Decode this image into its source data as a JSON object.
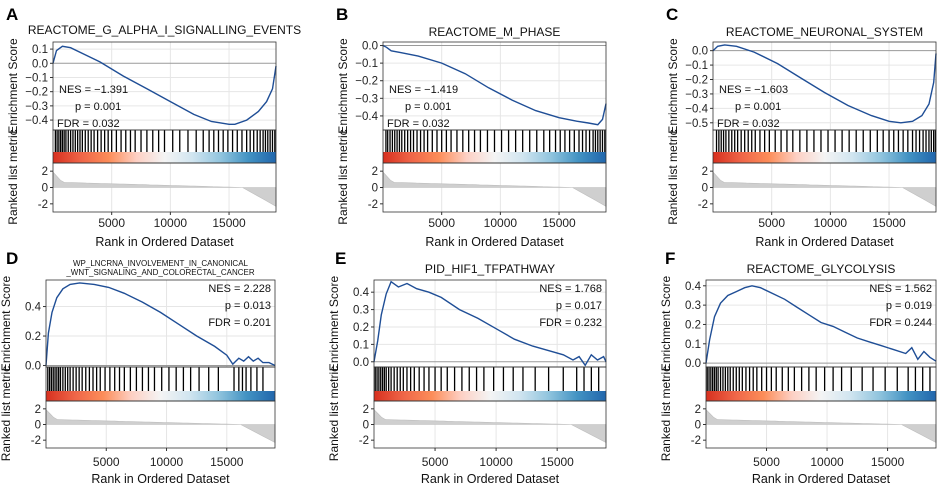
{
  "colors": {
    "curve": "#1f4e96",
    "grid": "#e6e6e6",
    "zero": "#9a9a9a",
    "axis": "#333333",
    "metric": "#cfcfcf",
    "bar_gradient": [
      "#d7301f",
      "#ef6548",
      "#fc8d59",
      "#fdd0c4",
      "#f4f4f4",
      "#d1e5f0",
      "#92c5de",
      "#4393c3",
      "#2166ac"
    ]
  },
  "common": {
    "es_ylabel": "Enrichment Score",
    "rm_ylabel": "Ranked list metric",
    "xlabel": "Rank in Ordered Dataset",
    "xticks": [
      5000,
      10000,
      15000
    ],
    "xticklabels": [
      "5000",
      "10000",
      "15000"
    ],
    "xlim": [
      0,
      19000
    ],
    "rm_ticks": [
      2,
      0,
      -2
    ],
    "rm_ticklabels": [
      "2",
      "0",
      "-2"
    ]
  },
  "chart_data": [
    {
      "type": "line",
      "letter": "A",
      "title": "REACTOME_G_ALPHA_I_SIGNALLING_EVENTS",
      "title_lines": [
        "REACTOME_G_ALPHA_I_SIGNALLING_EVENTS"
      ],
      "stats": [
        "NES = −1.391",
        "p = 0.001",
        "FDR = 0.032"
      ],
      "stats_pos": "left",
      "ylim": [
        -0.47,
        0.15
      ],
      "yticks": [
        0.1,
        0.0,
        -0.1,
        -0.2,
        -0.3,
        -0.4
      ],
      "yticklabels": [
        "0.1",
        "0.0",
        "−0.1",
        "−0.2",
        "−0.3",
        "−0.4"
      ],
      "x": [
        0,
        300,
        800,
        1500,
        2500,
        4000,
        6000,
        8000,
        10000,
        12000,
        13500,
        15000,
        15500,
        16500,
        17500,
        18200,
        18700,
        19000
      ],
      "y": [
        0.0,
        0.09,
        0.12,
        0.11,
        0.07,
        0.01,
        -0.09,
        -0.18,
        -0.27,
        -0.36,
        -0.41,
        -0.43,
        -0.43,
        -0.4,
        -0.34,
        -0.27,
        -0.18,
        -0.02
      ],
      "hits_rank": [
        200,
        350,
        500,
        650,
        800,
        950,
        1100,
        1300,
        1500,
        1700,
        1900,
        2100,
        2300,
        2500,
        2750,
        3000,
        3250,
        3500,
        3800,
        4100,
        4400,
        4700,
        5000,
        5400,
        5800,
        6200,
        6600,
        7000,
        7500,
        8000,
        8500,
        9000,
        9500,
        10200,
        10800,
        11500,
        12200,
        12800,
        13300,
        13700,
        14100,
        14500,
        14900,
        15300,
        15700,
        16100,
        16500,
        16800,
        17100,
        17400,
        17650,
        17900,
        18100,
        18300,
        18500,
        18700,
        18900
      ]
    },
    {
      "type": "line",
      "letter": "B",
      "title": "REACTOME_M_PHASE",
      "title_lines": [
        "REACTOME_M_PHASE"
      ],
      "stats": [
        "NES = −1.419",
        "p = 0.001",
        "FDR = 0.032"
      ],
      "stats_pos": "left",
      "ylim": [
        -0.48,
        0.02
      ],
      "yticks": [
        0.0,
        -0.1,
        -0.2,
        -0.3,
        -0.4
      ],
      "yticklabels": [
        "0.0",
        "−0.1",
        "−0.2",
        "−0.3",
        "−0.4"
      ],
      "x": [
        0,
        300,
        700,
        1500,
        3000,
        5000,
        7000,
        9000,
        11000,
        13000,
        15000,
        16500,
        17500,
        18300,
        18700,
        19000
      ],
      "y": [
        0.0,
        -0.01,
        -0.03,
        -0.04,
        -0.06,
        -0.1,
        -0.16,
        -0.24,
        -0.31,
        -0.37,
        -0.41,
        -0.43,
        -0.44,
        -0.45,
        -0.42,
        -0.33
      ],
      "hits_rank": [
        250,
        400,
        600,
        800,
        1000,
        1200,
        1400,
        1600,
        1850,
        2100,
        2350,
        2600,
        2900,
        3200,
        3500,
        3800,
        4200,
        4600,
        5000,
        5400,
        5800,
        6300,
        6800,
        7300,
        7800,
        8300,
        8900,
        9500,
        10100,
        10700,
        11300,
        11900,
        12500,
        13100,
        13700,
        14200,
        14700,
        15100,
        15500,
        15900,
        16300,
        16700,
        17000,
        17300,
        17600,
        17900,
        18100,
        18300,
        18500,
        18700,
        18900
      ]
    },
    {
      "type": "line",
      "letter": "C",
      "title": "REACTOME_NEURONAL_SYSTEM",
      "title_lines": [
        "REACTOME_NEURONAL_SYSTEM"
      ],
      "stats": [
        "NES = −1.603",
        "p = 0.001",
        "FDR = 0.032"
      ],
      "stats_pos": "left",
      "ylim": [
        -0.55,
        0.06
      ],
      "yticks": [
        0.0,
        -0.1,
        -0.2,
        -0.3,
        -0.4,
        -0.5
      ],
      "yticklabels": [
        "0.0",
        "−0.1",
        "−0.2",
        "−0.3",
        "−0.4",
        "−0.5"
      ],
      "x": [
        0,
        400,
        1000,
        2000,
        3500,
        5500,
        7500,
        9500,
        11500,
        13500,
        15000,
        16000,
        17000,
        17800,
        18400,
        18800,
        19000
      ],
      "y": [
        0.0,
        0.03,
        0.04,
        0.03,
        -0.01,
        -0.09,
        -0.19,
        -0.29,
        -0.38,
        -0.45,
        -0.49,
        -0.5,
        -0.49,
        -0.45,
        -0.37,
        -0.22,
        -0.02
      ],
      "hits_rank": [
        300,
        500,
        700,
        900,
        1100,
        1350,
        1600,
        1850,
        2100,
        2400,
        2700,
        3000,
        3300,
        3600,
        4000,
        4400,
        4800,
        5300,
        5800,
        6300,
        6800,
        7400,
        8000,
        8600,
        9200,
        9800,
        10400,
        11000,
        11600,
        12200,
        12800,
        13400,
        14000,
        14500,
        15000,
        15400,
        15800,
        16200,
        16600,
        17000,
        17300,
        17600,
        17900,
        18150,
        18400,
        18600,
        18800,
        18950
      ]
    },
    {
      "type": "line",
      "letter": "D",
      "title": "WP_LNCRNA_INVOLVEMENT_IN_CANONICAL_WNT_SIGNALING_AND_COLORECTAL_CANCER",
      "title_lines": [
        "WP_LNCRNA_INVOLVEMENT_IN_CANONICAL",
        "_WNT_SIGNALING_AND_COLORECTAL_CANCER"
      ],
      "stats": [
        "NES = 2.228",
        "p = 0.013",
        "FDR = 0.201"
      ],
      "stats_pos": "right",
      "ylim": [
        -0.01,
        0.58
      ],
      "yticks": [
        0.4,
        0.2,
        0.0
      ],
      "yticklabels": [
        "0.4",
        "0.2",
        "0.0"
      ],
      "x": [
        0,
        200,
        500,
        900,
        1400,
        2000,
        2800,
        4000,
        5200,
        6500,
        8000,
        9500,
        11000,
        12500,
        14000,
        15000,
        15500,
        16000,
        16400,
        16800,
        17200,
        17600,
        18000,
        18500,
        19000
      ],
      "y": [
        0.0,
        0.22,
        0.36,
        0.46,
        0.52,
        0.55,
        0.56,
        0.55,
        0.53,
        0.49,
        0.43,
        0.36,
        0.28,
        0.2,
        0.13,
        0.07,
        0.01,
        0.05,
        0.03,
        0.06,
        0.03,
        0.05,
        0.02,
        0.02,
        0.0
      ],
      "hits_rank": [
        150,
        300,
        450,
        600,
        750,
        900,
        1050,
        1200,
        1400,
        1600,
        1800,
        2000,
        2250,
        2500,
        2750,
        3000,
        3300,
        3600,
        3900,
        4200,
        4500,
        4900,
        5300,
        5700,
        6100,
        6500,
        7000,
        7500,
        8000,
        8500,
        9000,
        9600,
        10200,
        10800,
        11400,
        12000,
        12700,
        13500,
        14300,
        15600,
        16000,
        16300,
        16600,
        17000,
        17500,
        18000
      ]
    },
    {
      "type": "line",
      "letter": "E",
      "title": "PID_HIF1_TFPATHWAY",
      "title_lines": [
        "PID_HIF1_TFPATHWAY"
      ],
      "stats": [
        "NES = 1.768",
        "p = 0.017",
        "FDR = 0.232"
      ],
      "stats_pos": "right",
      "ylim": [
        -0.03,
        0.47
      ],
      "yticks": [
        0.4,
        0.3,
        0.2,
        0.1,
        0.0
      ],
      "yticklabels": [
        "0.4",
        "0.3",
        "0.2",
        "0.1",
        "0.0"
      ],
      "x": [
        0,
        300,
        600,
        1000,
        1400,
        2000,
        2700,
        3500,
        4500,
        5500,
        7000,
        8500,
        10000,
        11500,
        13000,
        14500,
        15500,
        16300,
        16800,
        17300,
        17800,
        18300,
        18800,
        19000
      ],
      "y": [
        0.0,
        0.12,
        0.27,
        0.39,
        0.46,
        0.43,
        0.45,
        0.42,
        0.4,
        0.37,
        0.3,
        0.25,
        0.19,
        0.13,
        0.09,
        0.06,
        0.04,
        0.01,
        0.03,
        -0.02,
        0.04,
        0.01,
        0.03,
        0.0
      ],
      "hits_rank": [
        100,
        250,
        400,
        550,
        700,
        850,
        1000,
        1200,
        1400,
        1650,
        1900,
        2150,
        2400,
        2700,
        3000,
        3300,
        3700,
        4100,
        4500,
        5000,
        5500,
        6000,
        6600,
        7200,
        7800,
        8400,
        9000,
        9800,
        10600,
        11400,
        12200,
        13200,
        14300,
        15500,
        16600,
        17200,
        17800,
        18400
      ]
    },
    {
      "type": "line",
      "letter": "F",
      "title": "REACTOME_GLYCOLYSIS",
      "title_lines": [
        "REACTOME_GLYCOLYSIS"
      ],
      "stats": [
        "NES = 1.562",
        "p = 0.019",
        "FDR = 0.244"
      ],
      "stats_pos": "right",
      "ylim": [
        -0.02,
        0.43
      ],
      "yticks": [
        0.4,
        0.3,
        0.2,
        0.1,
        0.0
      ],
      "yticklabels": [
        "0.4",
        "0.3",
        "0.2",
        "0.1",
        "0.0"
      ],
      "x": [
        0,
        300,
        700,
        1200,
        1800,
        2500,
        3200,
        3800,
        4500,
        5500,
        6500,
        7500,
        8500,
        9500,
        10500,
        11500,
        12500,
        13500,
        14500,
        15500,
        16500,
        17000,
        17500,
        18000,
        18500,
        19000
      ],
      "y": [
        0.0,
        0.12,
        0.24,
        0.31,
        0.35,
        0.37,
        0.39,
        0.4,
        0.39,
        0.36,
        0.33,
        0.29,
        0.25,
        0.21,
        0.19,
        0.16,
        0.13,
        0.11,
        0.09,
        0.07,
        0.05,
        0.08,
        0.02,
        0.06,
        0.03,
        0.01
      ],
      "hits_rank": [
        100,
        250,
        400,
        550,
        700,
        850,
        1000,
        1200,
        1400,
        1600,
        1800,
        2000,
        2250,
        2500,
        2750,
        3000,
        3300,
        3600,
        3900,
        4200,
        4600,
        5000,
        5400,
        5800,
        6300,
        6800,
        7300,
        7900,
        8500,
        9100,
        9800,
        10500,
        11200,
        12000,
        12900,
        13800,
        14800,
        15800,
        16700,
        17300,
        17900,
        18500
      ]
    }
  ]
}
